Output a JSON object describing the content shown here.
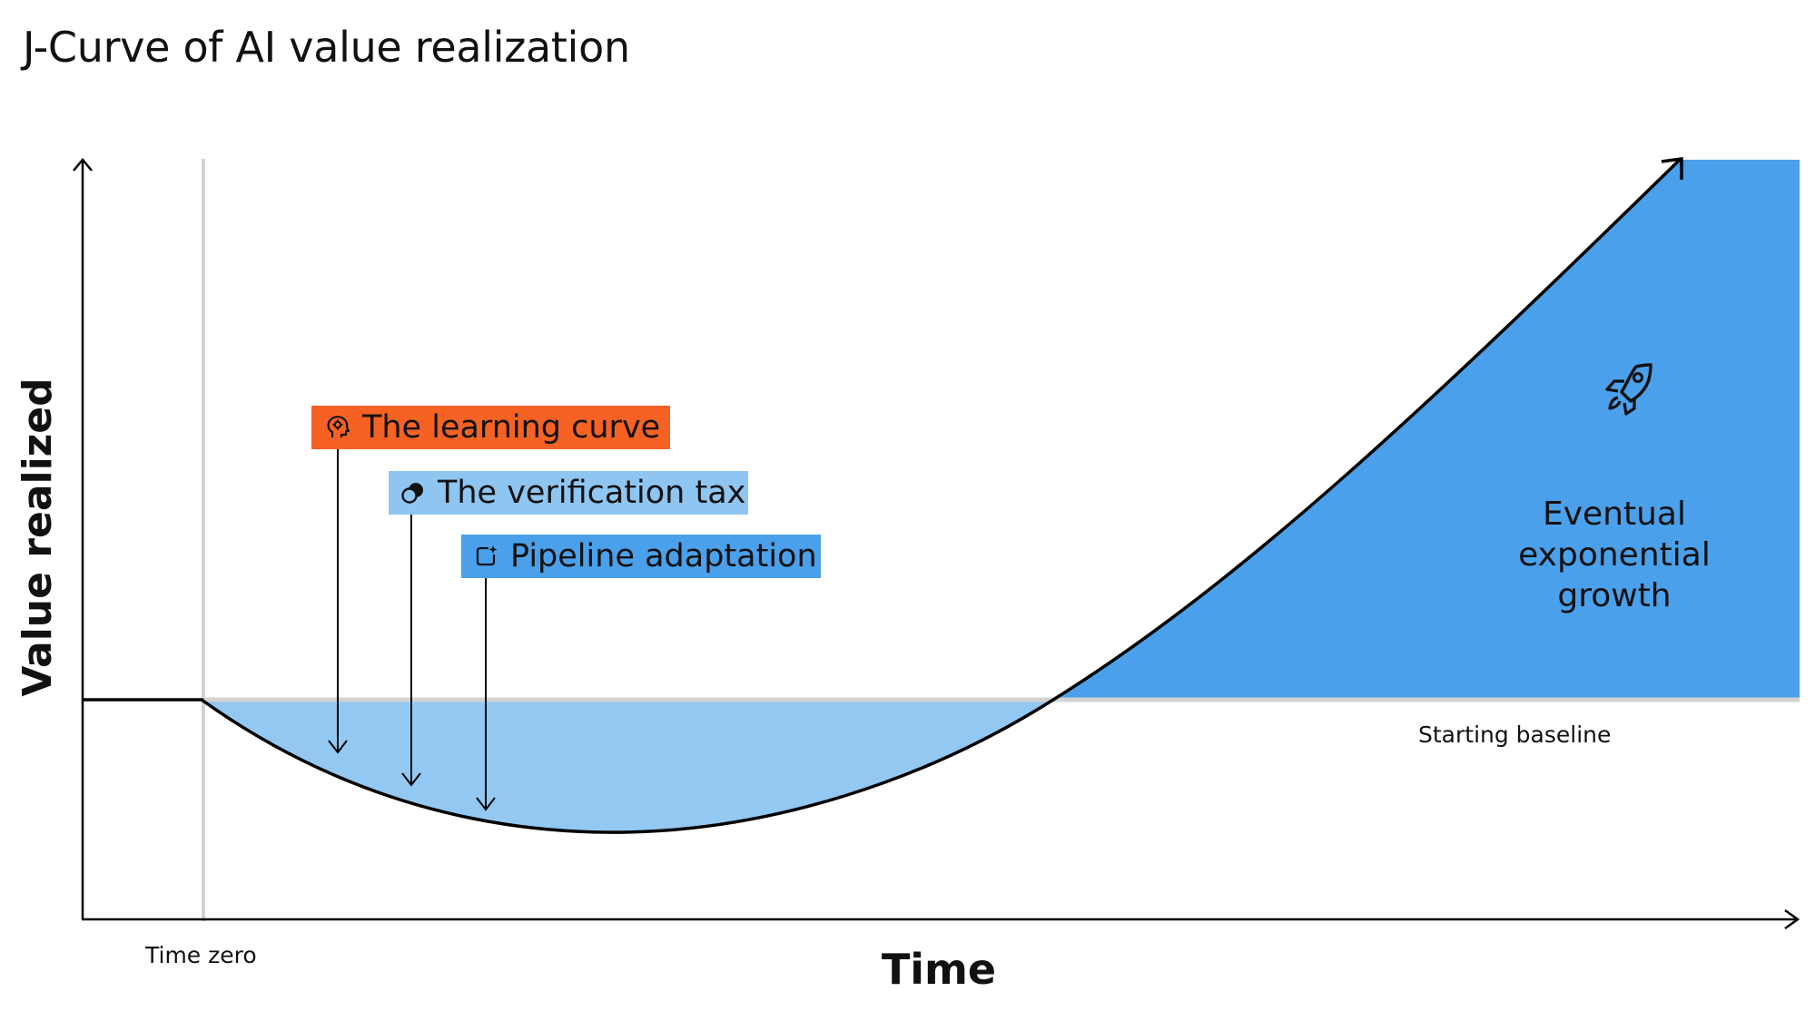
{
  "title": "J-Curve of AI value realization",
  "axes": {
    "y_label": "Value realized",
    "x_label": "Time"
  },
  "markers": {
    "time_zero": "Time zero",
    "starting_baseline": "Starting baseline"
  },
  "factors": [
    {
      "label": "The learning curve",
      "icon": "head-gear-icon",
      "color": "#f56224"
    },
    {
      "label": "The verification tax",
      "icon": "coins-icon",
      "color": "#8fc6f1"
    },
    {
      "label": "Pipeline adaptation",
      "icon": "sparkle-box-icon",
      "color": "#4aa0ea"
    }
  ],
  "growth": {
    "lines": [
      "Eventual",
      "exponential",
      "growth"
    ],
    "icon": "rocket-icon",
    "color": "#4aa0ea"
  },
  "colors": {
    "dip_fill": "#93c8f2",
    "growth_fill": "#4aa0ea",
    "baseline_line": "#d3d3d3",
    "curve": "#000000"
  }
}
